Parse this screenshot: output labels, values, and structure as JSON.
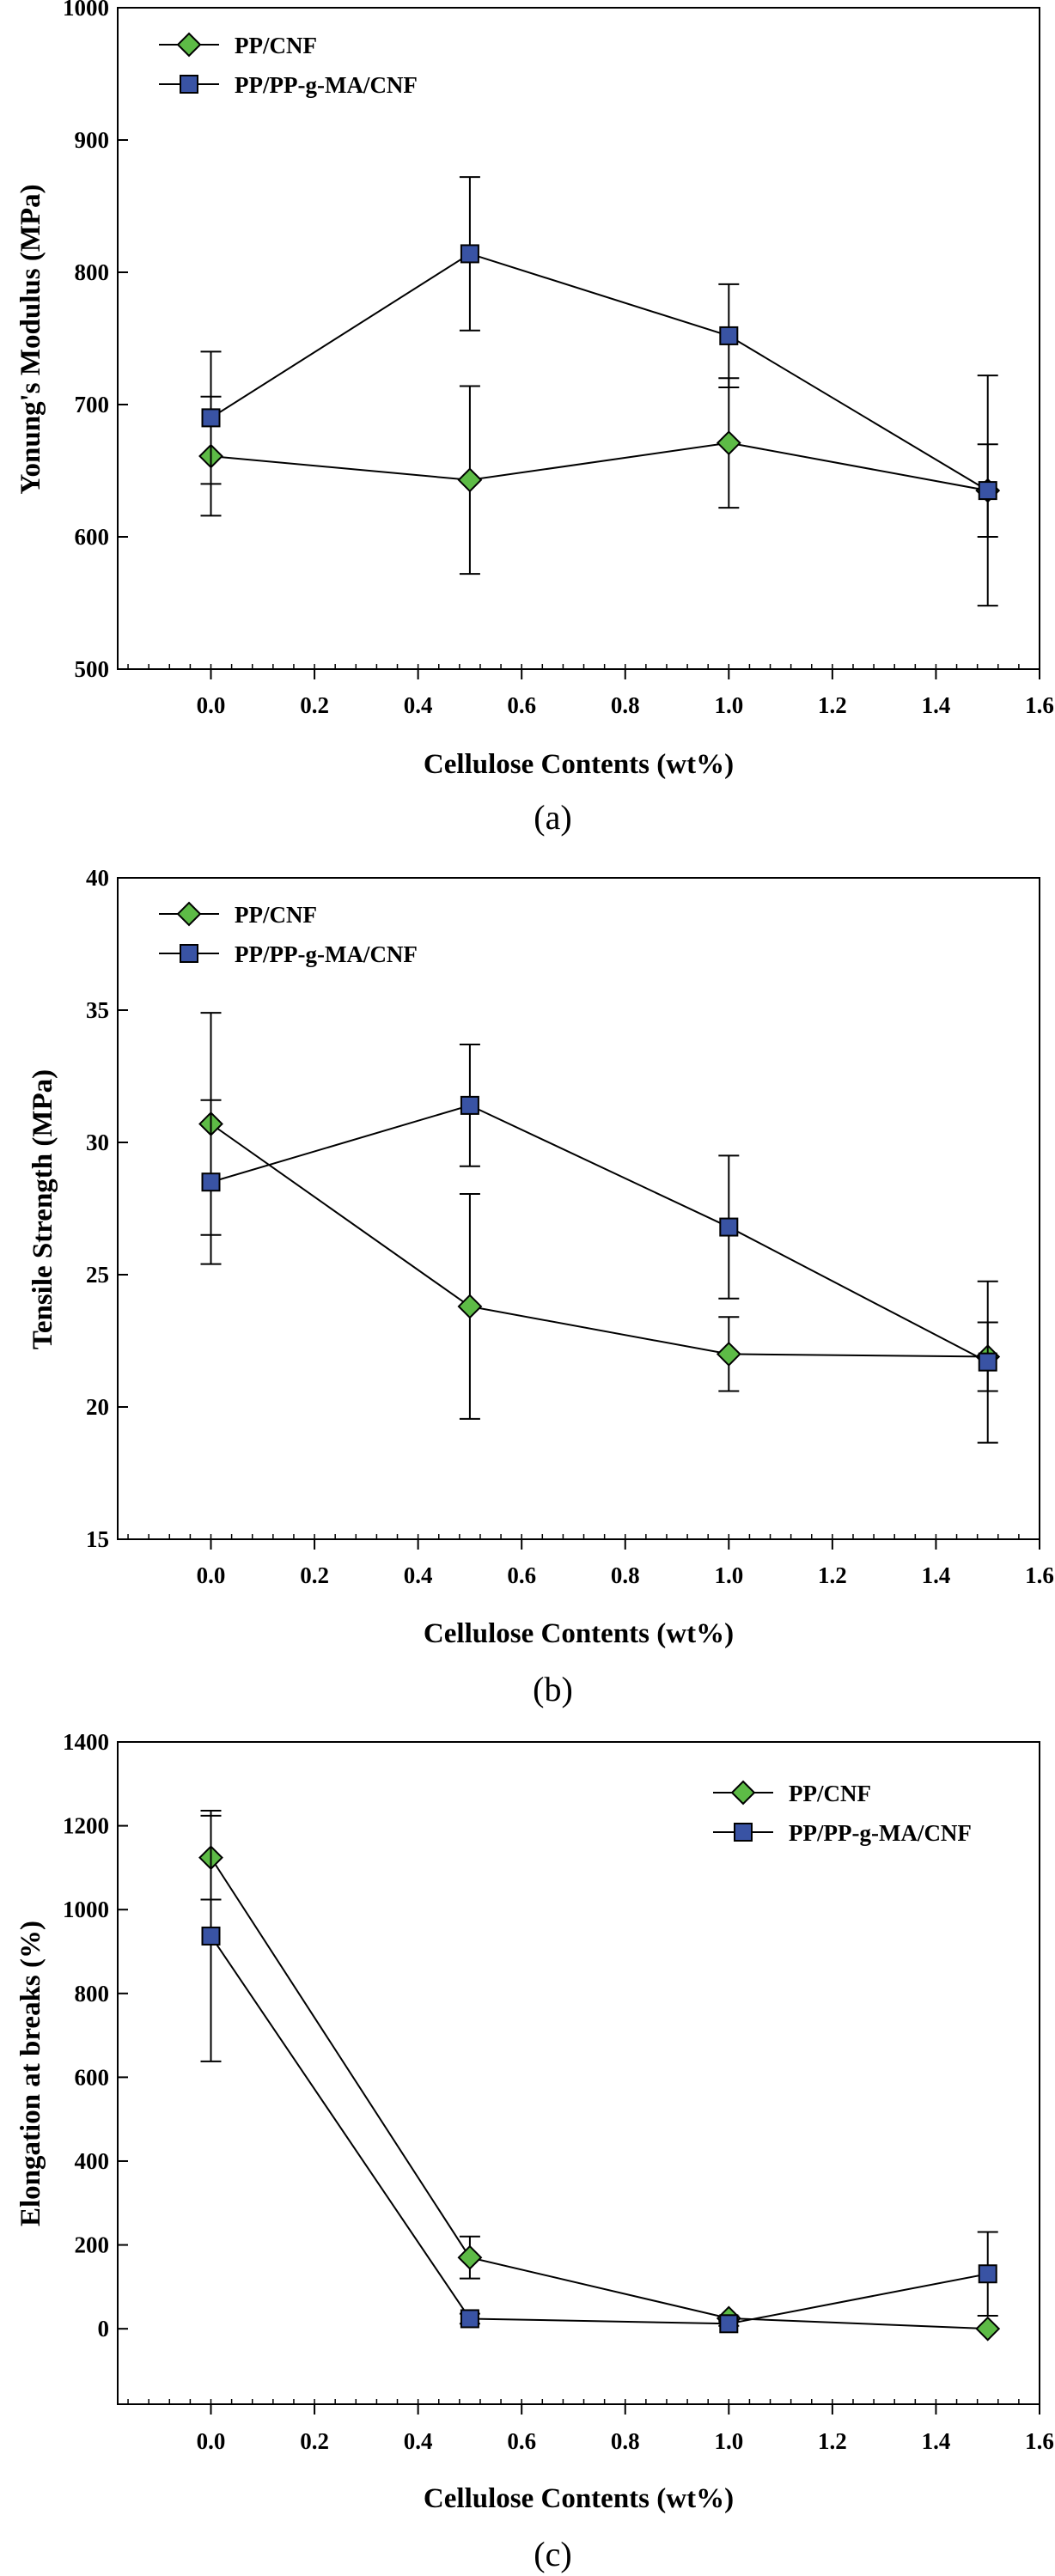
{
  "chart_data": [
    {
      "type": "line",
      "panel_caption": "(a)",
      "title": "",
      "xlabel": "Cellulose Contents (wt%)",
      "ylabel": "Yonung's Modulus (MPa)",
      "xlim": [
        -0.18,
        1.6
      ],
      "ylim": [
        500,
        1000
      ],
      "xticks": [
        "0.0",
        "0.2",
        "0.4",
        "0.6",
        "0.8",
        "1.0",
        "1.2",
        "1.4",
        "1.6"
      ],
      "xtick_values": [
        0.0,
        0.2,
        0.4,
        0.6,
        0.8,
        1.0,
        1.2,
        1.4,
        1.6
      ],
      "x_minor_step": 0.04,
      "yticks": [
        "500",
        "600",
        "700",
        "800",
        "900",
        "1000"
      ],
      "ytick_values": [
        500,
        600,
        700,
        800,
        900,
        1000
      ],
      "grid": false,
      "legend_position": "top-left",
      "x": [
        0.0,
        0.5,
        1.0,
        1.5
      ],
      "series": [
        {
          "name": "PP/CNF",
          "marker": "diamond",
          "color": "#5dbb46",
          "values": [
            661,
            643,
            671,
            635
          ],
          "errors": [
            45,
            71,
            49,
            35
          ]
        },
        {
          "name": "PP/PP-g-MA/CNF",
          "marker": "square",
          "color": "#3953a4",
          "values": [
            690,
            814,
            752,
            635
          ],
          "errors": [
            50,
            58,
            39,
            87
          ]
        }
      ]
    },
    {
      "type": "line",
      "panel_caption": "(b)",
      "title": "",
      "xlabel": "Cellulose Contents (wt%)",
      "ylabel": "Tensile Strength (MPa)",
      "xlim": [
        -0.18,
        1.6
      ],
      "ylim": [
        15,
        40
      ],
      "xticks": [
        "0.0",
        "0.2",
        "0.4",
        "0.6",
        "0.8",
        "1.0",
        "1.2",
        "1.4",
        "1.6"
      ],
      "xtick_values": [
        0.0,
        0.2,
        0.4,
        0.6,
        0.8,
        1.0,
        1.2,
        1.4,
        1.6
      ],
      "x_minor_step": 0.04,
      "yticks": [
        "15",
        "20",
        "25",
        "30",
        "35",
        "40"
      ],
      "ytick_values": [
        15,
        20,
        25,
        30,
        35,
        40
      ],
      "grid": false,
      "legend_position": "top-left",
      "x": [
        0.0,
        0.5,
        1.0,
        1.5
      ],
      "series": [
        {
          "name": "PP/CNF",
          "marker": "diamond",
          "color": "#5dbb46",
          "values": [
            30.7,
            23.8,
            22.0,
            21.9
          ],
          "errors": [
            4.2,
            4.25,
            1.4,
            1.3
          ]
        },
        {
          "name": "PP/PP-g-MA/CNF",
          "marker": "square",
          "color": "#3953a4",
          "values": [
            28.5,
            31.4,
            26.8,
            21.7
          ],
          "errors": [
            3.1,
            2.3,
            2.7,
            3.05
          ]
        }
      ]
    },
    {
      "type": "line",
      "panel_caption": "(c)",
      "title": "",
      "xlabel": "Cellulose Contents (wt%)",
      "ylabel": "Elongation at breaks (%)",
      "xlim": [
        -0.18,
        1.6
      ],
      "ylim": [
        -180,
        1400
      ],
      "xticks": [
        "0.0",
        "0.2",
        "0.4",
        "0.6",
        "0.8",
        "1.0",
        "1.2",
        "1.4",
        "1.6"
      ],
      "xtick_values": [
        0.0,
        0.2,
        0.4,
        0.6,
        0.8,
        1.0,
        1.2,
        1.4,
        1.6
      ],
      "x_minor_step": 0.04,
      "yticks": [
        "0",
        "200",
        "400",
        "600",
        "800",
        "1000",
        "1200",
        "1400"
      ],
      "ytick_values": [
        0,
        200,
        400,
        600,
        800,
        1000,
        1200,
        1400
      ],
      "grid": false,
      "legend_position": "top-right",
      "x": [
        0.0,
        0.5,
        1.0,
        1.5
      ],
      "series": [
        {
          "name": "PP/CNF",
          "marker": "diamond",
          "color": "#5dbb46",
          "values": [
            1124,
            170,
            25,
            0
          ],
          "errors": [
            100,
            50,
            5,
            0
          ]
        },
        {
          "name": "PP/PP-g-MA/CNF",
          "marker": "square",
          "color": "#3953a4",
          "values": [
            937,
            24,
            12,
            131
          ],
          "errors": [
            299,
            12,
            5,
            100
          ]
        }
      ]
    }
  ]
}
